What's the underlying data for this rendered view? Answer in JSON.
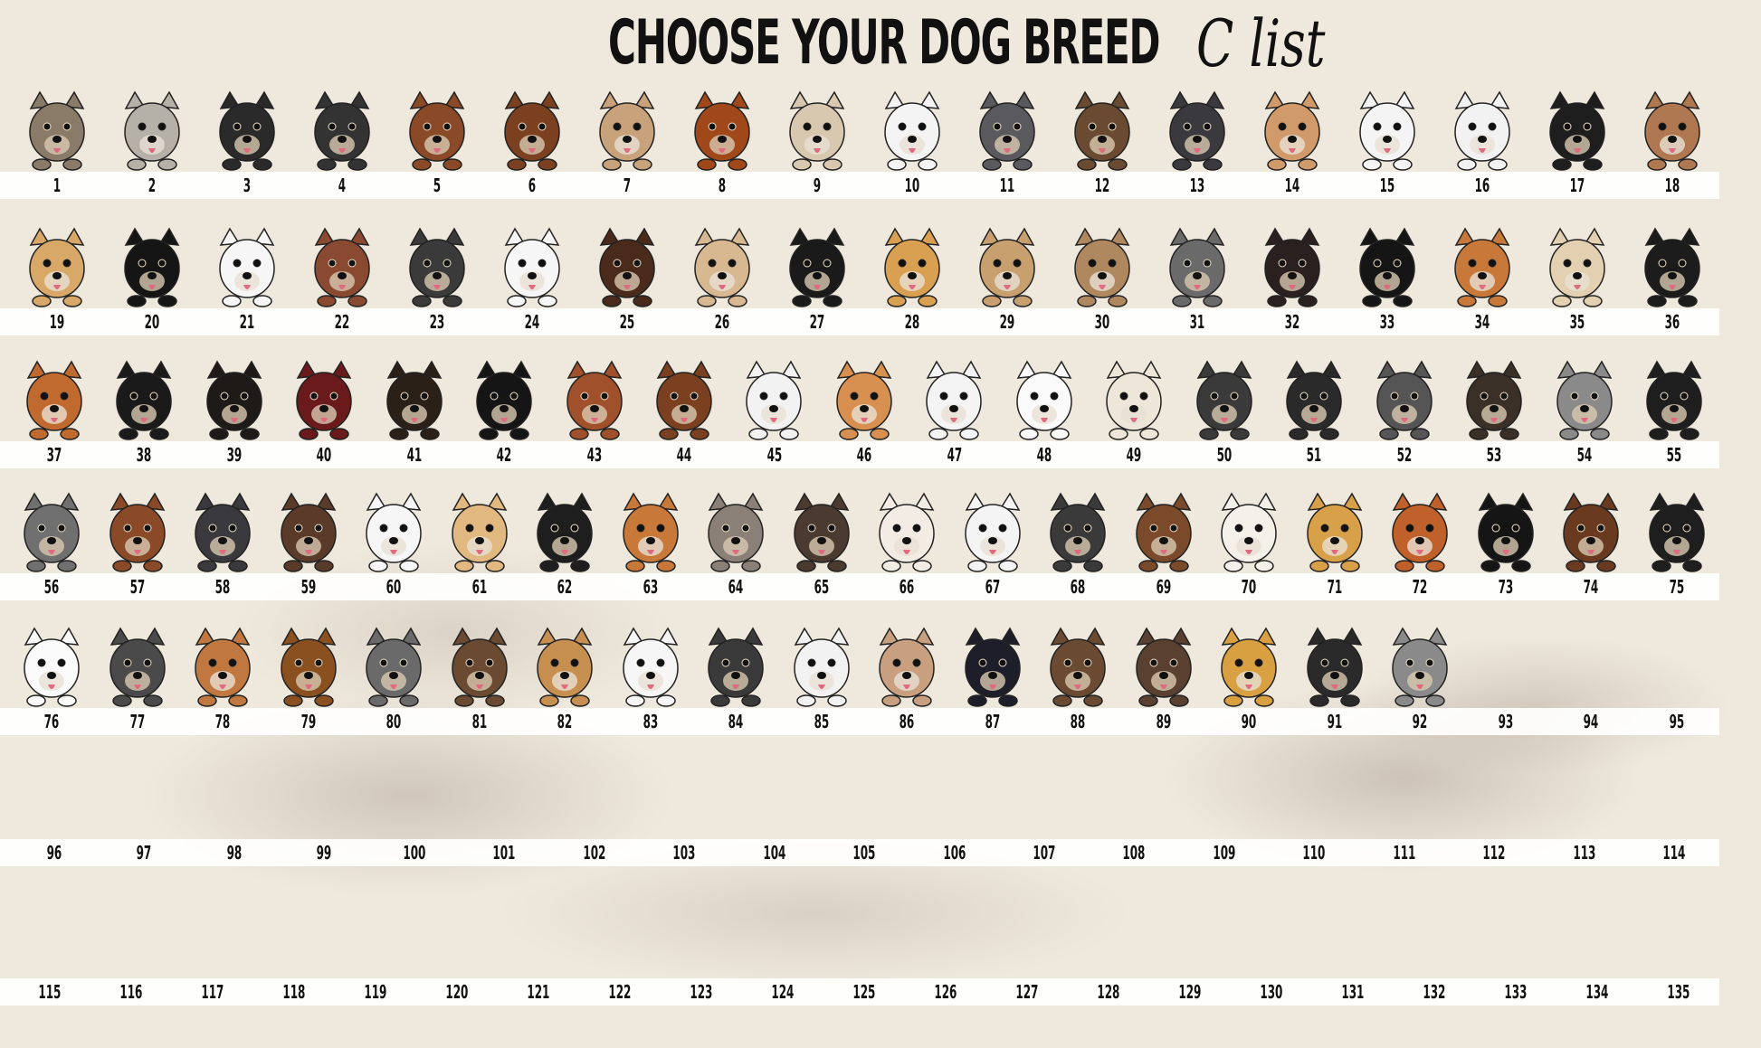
{
  "header": {
    "title": "CHOOSE YOUR DOG BREED",
    "subtitle": "C list"
  },
  "rows": [
    {
      "items": [
        {
          "n": "1",
          "fur": "#8a7a68"
        },
        {
          "n": "2",
          "fur": "#b5b0a8"
        },
        {
          "n": "3",
          "fur": "#2a2a2a"
        },
        {
          "n": "4",
          "fur": "#333333"
        },
        {
          "n": "5",
          "fur": "#8a4a28"
        },
        {
          "n": "6",
          "fur": "#7a4020"
        },
        {
          "n": "7",
          "fur": "#c8a27a"
        },
        {
          "n": "8",
          "fur": "#a0481a"
        },
        {
          "n": "9",
          "fur": "#d8c8b0"
        },
        {
          "n": "10",
          "fur": "#f4f4f4"
        },
        {
          "n": "11",
          "fur": "#5a5a5e"
        },
        {
          "n": "12",
          "fur": "#6a4a30"
        },
        {
          "n": "13",
          "fur": "#3a3a3e"
        },
        {
          "n": "14",
          "fur": "#d09a6a"
        },
        {
          "n": "15",
          "fur": "#f4f4f4"
        },
        {
          "n": "16",
          "fur": "#f2f2f2"
        },
        {
          "n": "17",
          "fur": "#1e1e1e"
        },
        {
          "n": "18",
          "fur": "#b07850"
        }
      ]
    },
    {
      "items": [
        {
          "n": "19",
          "fur": "#d8a868"
        },
        {
          "n": "20",
          "fur": "#151515"
        },
        {
          "n": "21",
          "fur": "#f6f6f6"
        },
        {
          "n": "22",
          "fur": "#8a4a32"
        },
        {
          "n": "23",
          "fur": "#3a3a3a"
        },
        {
          "n": "24",
          "fur": "#f6f6f6"
        },
        {
          "n": "25",
          "fur": "#4a2a1a"
        },
        {
          "n": "26",
          "fur": "#d8b890"
        },
        {
          "n": "27",
          "fur": "#1a1a1a"
        },
        {
          "n": "28",
          "fur": "#d8a050"
        },
        {
          "n": "29",
          "fur": "#c8a070"
        },
        {
          "n": "30",
          "fur": "#b08860"
        },
        {
          "n": "31",
          "fur": "#6a6a6a"
        },
        {
          "n": "32",
          "fur": "#2a2020"
        },
        {
          "n": "33",
          "fur": "#151515"
        },
        {
          "n": "34",
          "fur": "#c87838"
        },
        {
          "n": "35",
          "fur": "#e2d0b0"
        },
        {
          "n": "36",
          "fur": "#1c1c1c"
        }
      ]
    },
    {
      "items": [
        {
          "n": "37",
          "fur": "#c06a30"
        },
        {
          "n": "38",
          "fur": "#1a1a1a"
        },
        {
          "n": "39",
          "fur": "#1e1a18"
        },
        {
          "n": "40",
          "fur": "#6a1a1a"
        },
        {
          "n": "41",
          "fur": "#2a2018"
        },
        {
          "n": "42",
          "fur": "#151515"
        },
        {
          "n": "43",
          "fur": "#a0502a"
        },
        {
          "n": "44",
          "fur": "#7a4020"
        },
        {
          "n": "45",
          "fur": "#f2f2f2"
        },
        {
          "n": "46",
          "fur": "#d89050"
        },
        {
          "n": "47",
          "fur": "#f4f4f4"
        },
        {
          "n": "48",
          "fur": "#fafafa"
        },
        {
          "n": "49",
          "fur": "#eee6d8"
        },
        {
          "n": "50",
          "fur": "#3a3a3a"
        },
        {
          "n": "51",
          "fur": "#2a2a2a"
        },
        {
          "n": "52",
          "fur": "#555555"
        },
        {
          "n": "53",
          "fur": "#3a3028"
        },
        {
          "n": "54",
          "fur": "#8a8a8a"
        },
        {
          "n": "55",
          "fur": "#1e1e1e"
        }
      ]
    },
    {
      "items": [
        {
          "n": "56",
          "fur": "#707070"
        },
        {
          "n": "57",
          "fur": "#8a4a28"
        },
        {
          "n": "58",
          "fur": "#3a3a3e"
        },
        {
          "n": "59",
          "fur": "#5a3a28"
        },
        {
          "n": "60",
          "fur": "#f6f6f6"
        },
        {
          "n": "61",
          "fur": "#e0b880"
        },
        {
          "n": "62",
          "fur": "#1e1e1e"
        },
        {
          "n": "63",
          "fur": "#c87838"
        },
        {
          "n": "64",
          "fur": "#8a8078"
        },
        {
          "n": "65",
          "fur": "#4a3a30"
        },
        {
          "n": "66",
          "fur": "#f2ece4"
        },
        {
          "n": "67",
          "fur": "#f4f4f4"
        },
        {
          "n": "68",
          "fur": "#3a3a3a"
        },
        {
          "n": "69",
          "fur": "#7a4a2a"
        },
        {
          "n": "70",
          "fur": "#f4f0ea"
        },
        {
          "n": "71",
          "fur": "#d8a048"
        },
        {
          "n": "72",
          "fur": "#c0602a"
        },
        {
          "n": "73",
          "fur": "#151515"
        },
        {
          "n": "74",
          "fur": "#6a3a20"
        },
        {
          "n": "75",
          "fur": "#1e1e1e"
        }
      ]
    },
    {
      "items": [
        {
          "n": "76",
          "fur": "#fafafa"
        },
        {
          "n": "77",
          "fur": "#4a4a4a"
        },
        {
          "n": "78",
          "fur": "#c07840"
        },
        {
          "n": "79",
          "fur": "#8a5020"
        },
        {
          "n": "80",
          "fur": "#6a6a6a"
        },
        {
          "n": "81",
          "fur": "#6a4a30"
        },
        {
          "n": "82",
          "fur": "#c89050"
        },
        {
          "n": "83",
          "fur": "#f6f6f6"
        },
        {
          "n": "84",
          "fur": "#3a3a3a"
        },
        {
          "n": "85",
          "fur": "#f2f2f2"
        },
        {
          "n": "86",
          "fur": "#c8a080"
        },
        {
          "n": "87",
          "fur": "#1e1e2a"
        },
        {
          "n": "88",
          "fur": "#6a4a30"
        },
        {
          "n": "89",
          "fur": "#5a4030"
        },
        {
          "n": "90",
          "fur": "#d8a040"
        },
        {
          "n": "91",
          "fur": "#2a2a2a"
        },
        {
          "n": "92",
          "fur": "#8a8a8a"
        },
        {
          "n": "93"
        },
        {
          "n": "94"
        },
        {
          "n": "95"
        }
      ]
    },
    {
      "items": [
        {
          "n": "96"
        },
        {
          "n": "97"
        },
        {
          "n": "98"
        },
        {
          "n": "99"
        },
        {
          "n": "100"
        },
        {
          "n": "101"
        },
        {
          "n": "102"
        },
        {
          "n": "103"
        },
        {
          "n": "104"
        },
        {
          "n": "105"
        },
        {
          "n": "106"
        },
        {
          "n": "107"
        },
        {
          "n": "108"
        },
        {
          "n": "109"
        },
        {
          "n": "110"
        },
        {
          "n": "111"
        },
        {
          "n": "112"
        },
        {
          "n": "113"
        },
        {
          "n": "114"
        }
      ]
    },
    {
      "items": [
        {
          "n": "115"
        },
        {
          "n": "116"
        },
        {
          "n": "117"
        },
        {
          "n": "118"
        },
        {
          "n": "119"
        },
        {
          "n": "120"
        },
        {
          "n": "121"
        },
        {
          "n": "122"
        },
        {
          "n": "123"
        },
        {
          "n": "124"
        },
        {
          "n": "125"
        },
        {
          "n": "126"
        },
        {
          "n": "127"
        },
        {
          "n": "128"
        },
        {
          "n": "129"
        },
        {
          "n": "130"
        },
        {
          "n": "131"
        },
        {
          "n": "132"
        },
        {
          "n": "133"
        },
        {
          "n": "134"
        },
        {
          "n": "135"
        }
      ]
    }
  ]
}
